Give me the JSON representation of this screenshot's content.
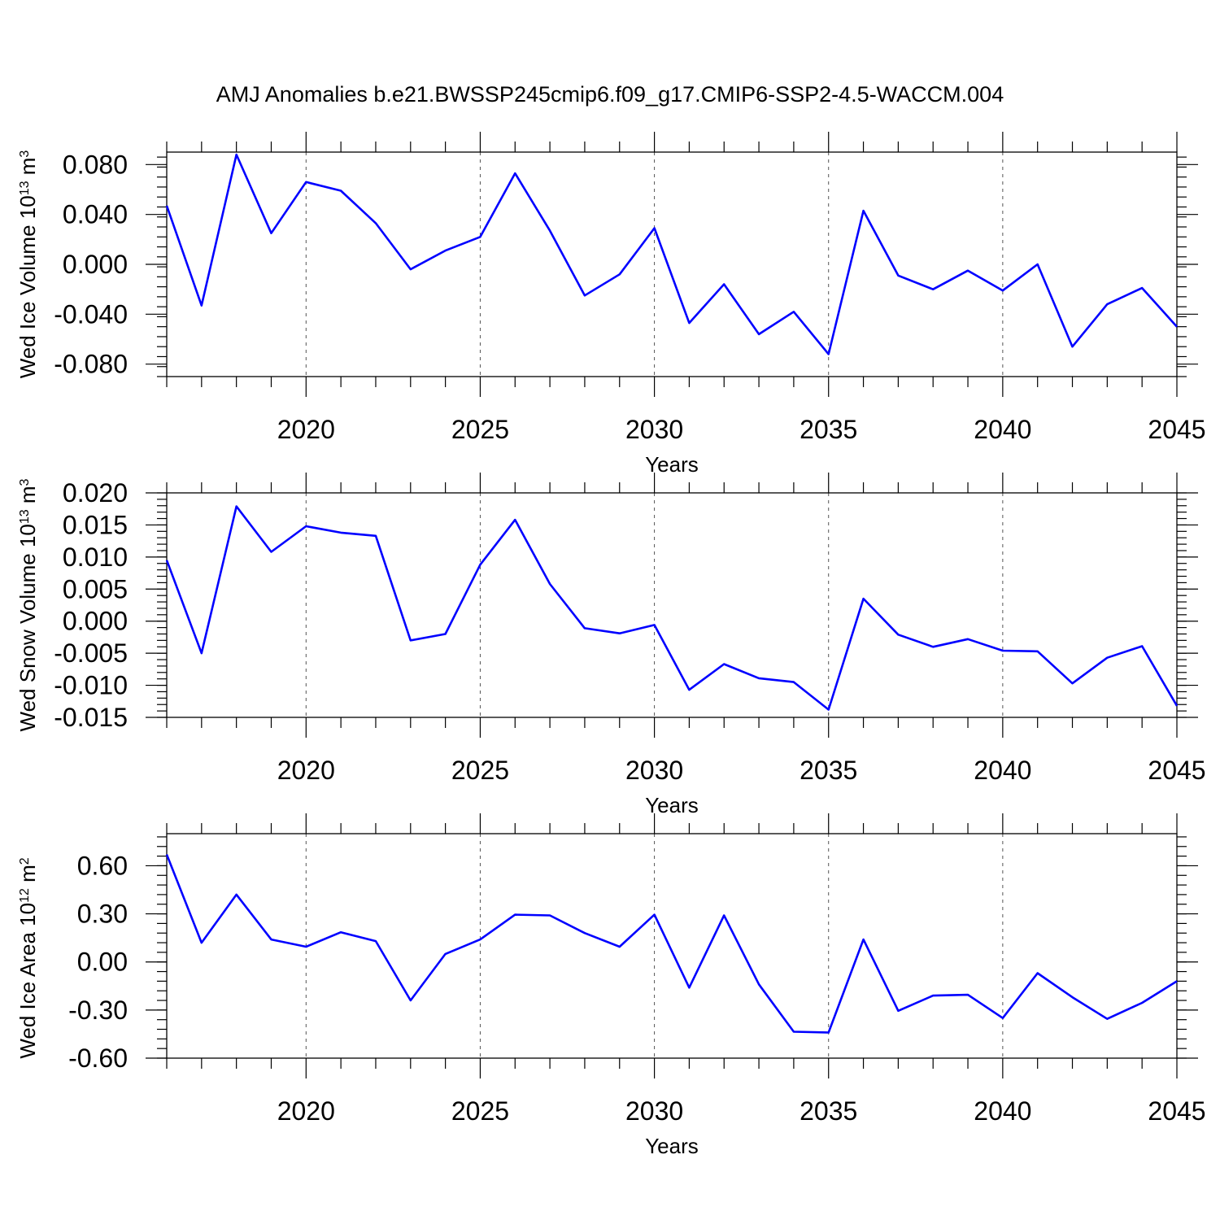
{
  "title": "AMJ Anomalies b.e21.BWSSP245cmip6.f09_g17.CMIP6-SSP2-4.5-WACCM.004",
  "colors": {
    "series": "#0000ff",
    "axis": "#000000",
    "grid": "#555555"
  },
  "chart_data": [
    {
      "type": "line",
      "title": "AMJ Anomalies b.e21.BWSSP245cmip6.f09_g17.CMIP6-SSP2-4.5-WACCM.004",
      "xlabel": "Years",
      "ylabel": "Wed Ice Volume",
      "ylabel_unit": "10",
      "ylabel_unit_exp": "13",
      "ylabel_unit_tail": "m",
      "ylabel_unit_tail_exp": "3",
      "xlim": [
        2016,
        2045
      ],
      "ylim": [
        -0.09,
        0.09
      ],
      "xticks": [
        2020,
        2025,
        2030,
        2035,
        2040,
        2045
      ],
      "yticks": [
        -0.08,
        -0.04,
        0.0,
        0.04,
        0.08
      ],
      "ytick_labels": [
        "-0.080",
        "-0.040",
        "0.000",
        "0.040",
        "0.080"
      ],
      "grid": "x-dashed",
      "x": [
        2016,
        2017,
        2018,
        2019,
        2020,
        2021,
        2022,
        2023,
        2024,
        2025,
        2026,
        2027,
        2028,
        2029,
        2030,
        2031,
        2032,
        2033,
        2034,
        2035,
        2036,
        2037,
        2038,
        2039,
        2040,
        2041,
        2042,
        2043,
        2044,
        2045
      ],
      "values": [
        0.047,
        -0.033,
        0.088,
        0.025,
        0.066,
        0.059,
        0.033,
        -0.004,
        0.011,
        0.022,
        0.073,
        0.027,
        -0.025,
        -0.008,
        0.029,
        -0.047,
        -0.016,
        -0.056,
        -0.038,
        -0.072,
        0.043,
        -0.009,
        -0.02,
        -0.005,
        -0.021,
        0.0,
        -0.066,
        -0.032,
        -0.019,
        -0.05
      ]
    },
    {
      "type": "line",
      "xlabel": "Years",
      "ylabel": "Wed Snow Volume",
      "ylabel_unit": "10",
      "ylabel_unit_exp": "13",
      "ylabel_unit_tail": "m",
      "ylabel_unit_tail_exp": "3",
      "xlim": [
        2016,
        2045
      ],
      "ylim": [
        -0.015,
        0.02
      ],
      "xticks": [
        2020,
        2025,
        2030,
        2035,
        2040,
        2045
      ],
      "yticks": [
        -0.015,
        -0.01,
        -0.005,
        0.0,
        0.005,
        0.01,
        0.015,
        0.02
      ],
      "ytick_labels": [
        "-0.015",
        "-0.010",
        "-0.005",
        "0.000",
        "0.005",
        "0.010",
        "0.015",
        "0.020"
      ],
      "grid": "x-dashed",
      "x": [
        2016,
        2017,
        2018,
        2019,
        2020,
        2021,
        2022,
        2023,
        2024,
        2025,
        2026,
        2027,
        2028,
        2029,
        2030,
        2031,
        2032,
        2033,
        2034,
        2035,
        2036,
        2037,
        2038,
        2039,
        2040,
        2041,
        2042,
        2043,
        2044,
        2045
      ],
      "values": [
        0.0095,
        -0.005,
        0.0179,
        0.0108,
        0.0148,
        0.0138,
        0.0133,
        -0.003,
        -0.002,
        0.0088,
        0.0158,
        0.0058,
        -0.0011,
        -0.0019,
        -0.0006,
        -0.0107,
        -0.0067,
        -0.0089,
        -0.0095,
        -0.0138,
        0.0035,
        -0.0021,
        -0.004,
        -0.0028,
        -0.0046,
        -0.0047,
        -0.0097,
        -0.0057,
        -0.0039,
        -0.0132
      ]
    },
    {
      "type": "line",
      "xlabel": "Years",
      "ylabel": "Wed Ice Area",
      "ylabel_unit": "10",
      "ylabel_unit_exp": "12",
      "ylabel_unit_tail": "m",
      "ylabel_unit_tail_exp": "2",
      "xlim": [
        2016,
        2045
      ],
      "ylim": [
        -0.6,
        0.8
      ],
      "xticks": [
        2020,
        2025,
        2030,
        2035,
        2040,
        2045
      ],
      "yticks": [
        -0.6,
        -0.3,
        0.0,
        0.3,
        0.6
      ],
      "ytick_labels": [
        "-0.60",
        "-0.30",
        "0.00",
        "0.30",
        "0.60"
      ],
      "grid": "x-dashed",
      "x": [
        2016,
        2017,
        2018,
        2019,
        2020,
        2021,
        2022,
        2023,
        2024,
        2025,
        2026,
        2027,
        2028,
        2029,
        2030,
        2031,
        2032,
        2033,
        2034,
        2035,
        2036,
        2037,
        2038,
        2039,
        2040,
        2041,
        2042,
        2043,
        2044,
        2045
      ],
      "values": [
        0.67,
        0.12,
        0.42,
        0.14,
        0.095,
        0.185,
        0.13,
        -0.24,
        0.05,
        0.14,
        0.295,
        0.29,
        0.18,
        0.095,
        0.295,
        -0.16,
        0.29,
        -0.14,
        -0.435,
        -0.44,
        0.14,
        -0.305,
        -0.21,
        -0.205,
        -0.35,
        -0.07,
        -0.22,
        -0.355,
        -0.255,
        -0.12
      ]
    }
  ]
}
